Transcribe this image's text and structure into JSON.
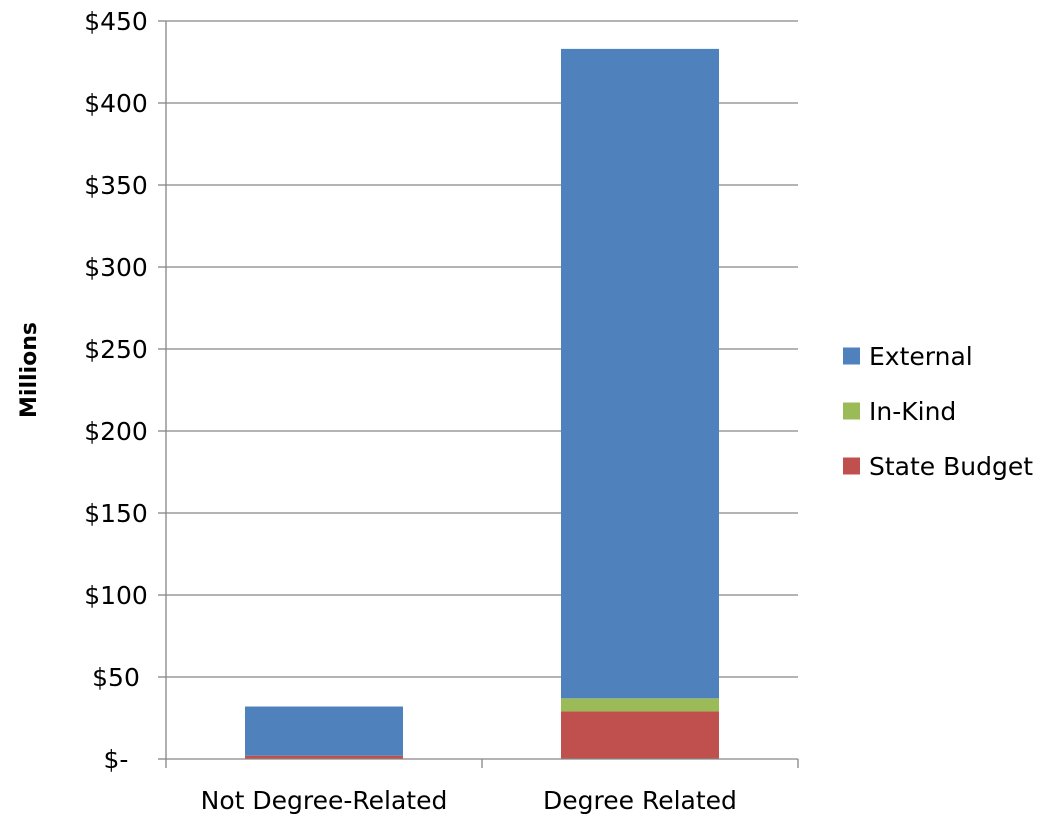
{
  "chart_data": {
    "type": "bar",
    "stacked": true,
    "categories": [
      "Not Degree-Related",
      "Degree Related"
    ],
    "series": [
      {
        "name": "State Budget",
        "values": [
          2,
          29
        ],
        "color": "#c0504d"
      },
      {
        "name": "In-Kind",
        "values": [
          0,
          8
        ],
        "color": "#9bbb59"
      },
      {
        "name": "External",
        "values": [
          30,
          396
        ],
        "color": "#4f81bd"
      }
    ],
    "ylabel": "Millions",
    "ylim": [
      0,
      450
    ],
    "yticks": [
      0,
      50,
      100,
      150,
      200,
      250,
      300,
      350,
      400,
      450
    ],
    "ytick_labels": [
      "$-",
      "$50",
      "$100",
      "$150",
      "$200",
      "$250",
      "$300",
      "$350",
      "$400",
      "$450"
    ],
    "grid": true,
    "legend_placement": "right",
    "legend_order": [
      "External",
      "In-Kind",
      "State Budget"
    ]
  }
}
